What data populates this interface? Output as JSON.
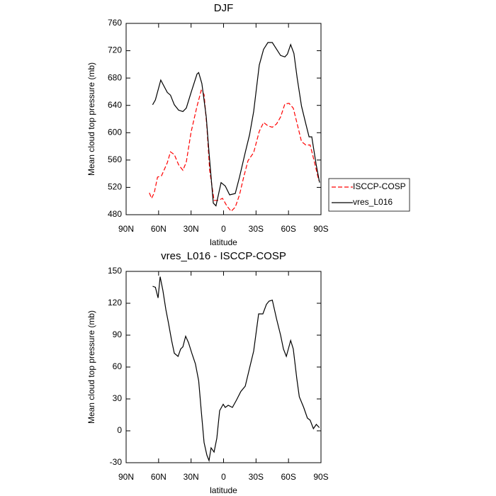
{
  "chart_data": [
    {
      "type": "line",
      "title": "DJF",
      "xlabel": "latitude",
      "ylabel": "Mean cloud top pressure (mb)",
      "xlim": [
        90,
        -90
      ],
      "xticks": [
        {
          "value": 90,
          "label": "90N"
        },
        {
          "value": 60,
          "label": "60N"
        },
        {
          "value": 30,
          "label": "30N"
        },
        0,
        {
          "value": -30,
          "label": "30S"
        },
        {
          "value": -60,
          "label": "60S"
        },
        {
          "value": -90,
          "label": "90S"
        }
      ],
      "ylim": [
        480,
        760
      ],
      "yticks": [
        480,
        520,
        560,
        600,
        640,
        680,
        720,
        760
      ],
      "legend": "right",
      "series": [
        {
          "name": "ISCCP-COSP",
          "color": "#ff0000",
          "linestyle": "dashed",
          "x": [
            68.5,
            66.5,
            64,
            61,
            57.3,
            52,
            49,
            45.5,
            41.5,
            37.6,
            34.4,
            30,
            24.5,
            20.6,
            18,
            15.4,
            12.8,
            8.8,
            4.9,
            1,
            -3,
            -7,
            -10.8,
            -14.7,
            -18.6,
            -22.6,
            -27.8,
            -33,
            -37,
            -41,
            -45,
            -49,
            -52.7,
            -56.6,
            -60.5,
            -64.4,
            -68,
            -72,
            -76,
            -80,
            -84,
            -88
          ],
          "values": [
            512,
            504,
            512,
            535,
            537,
            556,
            572,
            568,
            553,
            545,
            557,
            601,
            639,
            662,
            656,
            608,
            545,
            501,
            501,
            504,
            493,
            485,
            491,
            509,
            535,
            559,
            571,
            602,
            615,
            610,
            608,
            613,
            623,
            642,
            643,
            636,
            613,
            587,
            582,
            582,
            557,
            530
          ]
        },
        {
          "name": "vres_L016",
          "color": "#000000",
          "linestyle": "solid",
          "x": [
            65.5,
            63,
            58,
            52,
            49,
            45.5,
            41.5,
            37.6,
            34.4,
            30,
            24.5,
            23,
            20,
            16,
            13.4,
            9.5,
            7,
            2.3,
            -1.6,
            -5.6,
            -10.8,
            -14.7,
            -20,
            -24,
            -27.8,
            -33,
            -37,
            -41,
            -45,
            -49,
            -52.7,
            -56.6,
            -59,
            -62,
            -65,
            -68,
            -72,
            -76,
            -79,
            -81.5,
            -85.5,
            -88.7
          ],
          "values": [
            641,
            648,
            677,
            659,
            655,
            641,
            633,
            631,
            636,
            659,
            686,
            688,
            672,
            623,
            571,
            497,
            493,
            527,
            522,
            509,
            511,
            535,
            571,
            597,
            631,
            699,
            722,
            732,
            732,
            722,
            713,
            711,
            715,
            729,
            716,
            680,
            639,
            613,
            594,
            594,
            554,
            527
          ]
        }
      ]
    },
    {
      "type": "line",
      "title": "vres_L016 - ISCCP-COSP",
      "xlabel": "latitude",
      "ylabel": "Mean cloud top pressure (mb)",
      "xlim": [
        90,
        -90
      ],
      "xticks": [
        {
          "value": 90,
          "label": "90N"
        },
        {
          "value": 60,
          "label": "60N"
        },
        {
          "value": 30,
          "label": "30N"
        },
        0,
        {
          "value": -30,
          "label": "30S"
        },
        {
          "value": -60,
          "label": "60S"
        },
        {
          "value": -90,
          "label": "90S"
        }
      ],
      "ylim": [
        -30,
        150
      ],
      "yticks": [
        -30,
        0,
        30,
        60,
        90,
        120,
        150
      ],
      "series": [
        {
          "color": "#000000",
          "linestyle": "solid",
          "x": [
            65.5,
            63,
            60.5,
            58.6,
            56,
            53.3,
            51,
            48,
            45.5,
            42,
            39.6,
            37.6,
            35,
            32.4,
            29,
            26,
            23,
            20.6,
            18,
            15.4,
            13.4,
            11.5,
            8.8,
            6.2,
            3.6,
            0.3,
            -1.6,
            -4.3,
            -8.2,
            -12,
            -16,
            -20,
            -24,
            -27.8,
            -32.4,
            -36.3,
            -39.6,
            -42,
            -45,
            -49,
            -52.7,
            -55.3,
            -58,
            -62,
            -64.4,
            -67.7,
            -70,
            -74,
            -77.4,
            -80,
            -83,
            -85.7,
            -88.5
          ],
          "values": [
            136,
            135,
            125,
            145,
            132,
            114,
            102,
            85,
            73,
            70,
            77,
            79,
            89,
            83,
            72,
            63,
            47,
            19,
            -11,
            -23,
            -28,
            -16,
            -20,
            -7,
            19,
            25,
            22,
            24,
            22,
            29,
            37,
            42,
            59,
            75,
            110,
            110,
            119,
            122,
            123,
            105,
            90,
            77,
            70,
            85,
            77,
            49,
            32,
            22,
            12,
            10,
            2,
            6,
            3
          ]
        }
      ]
    }
  ]
}
